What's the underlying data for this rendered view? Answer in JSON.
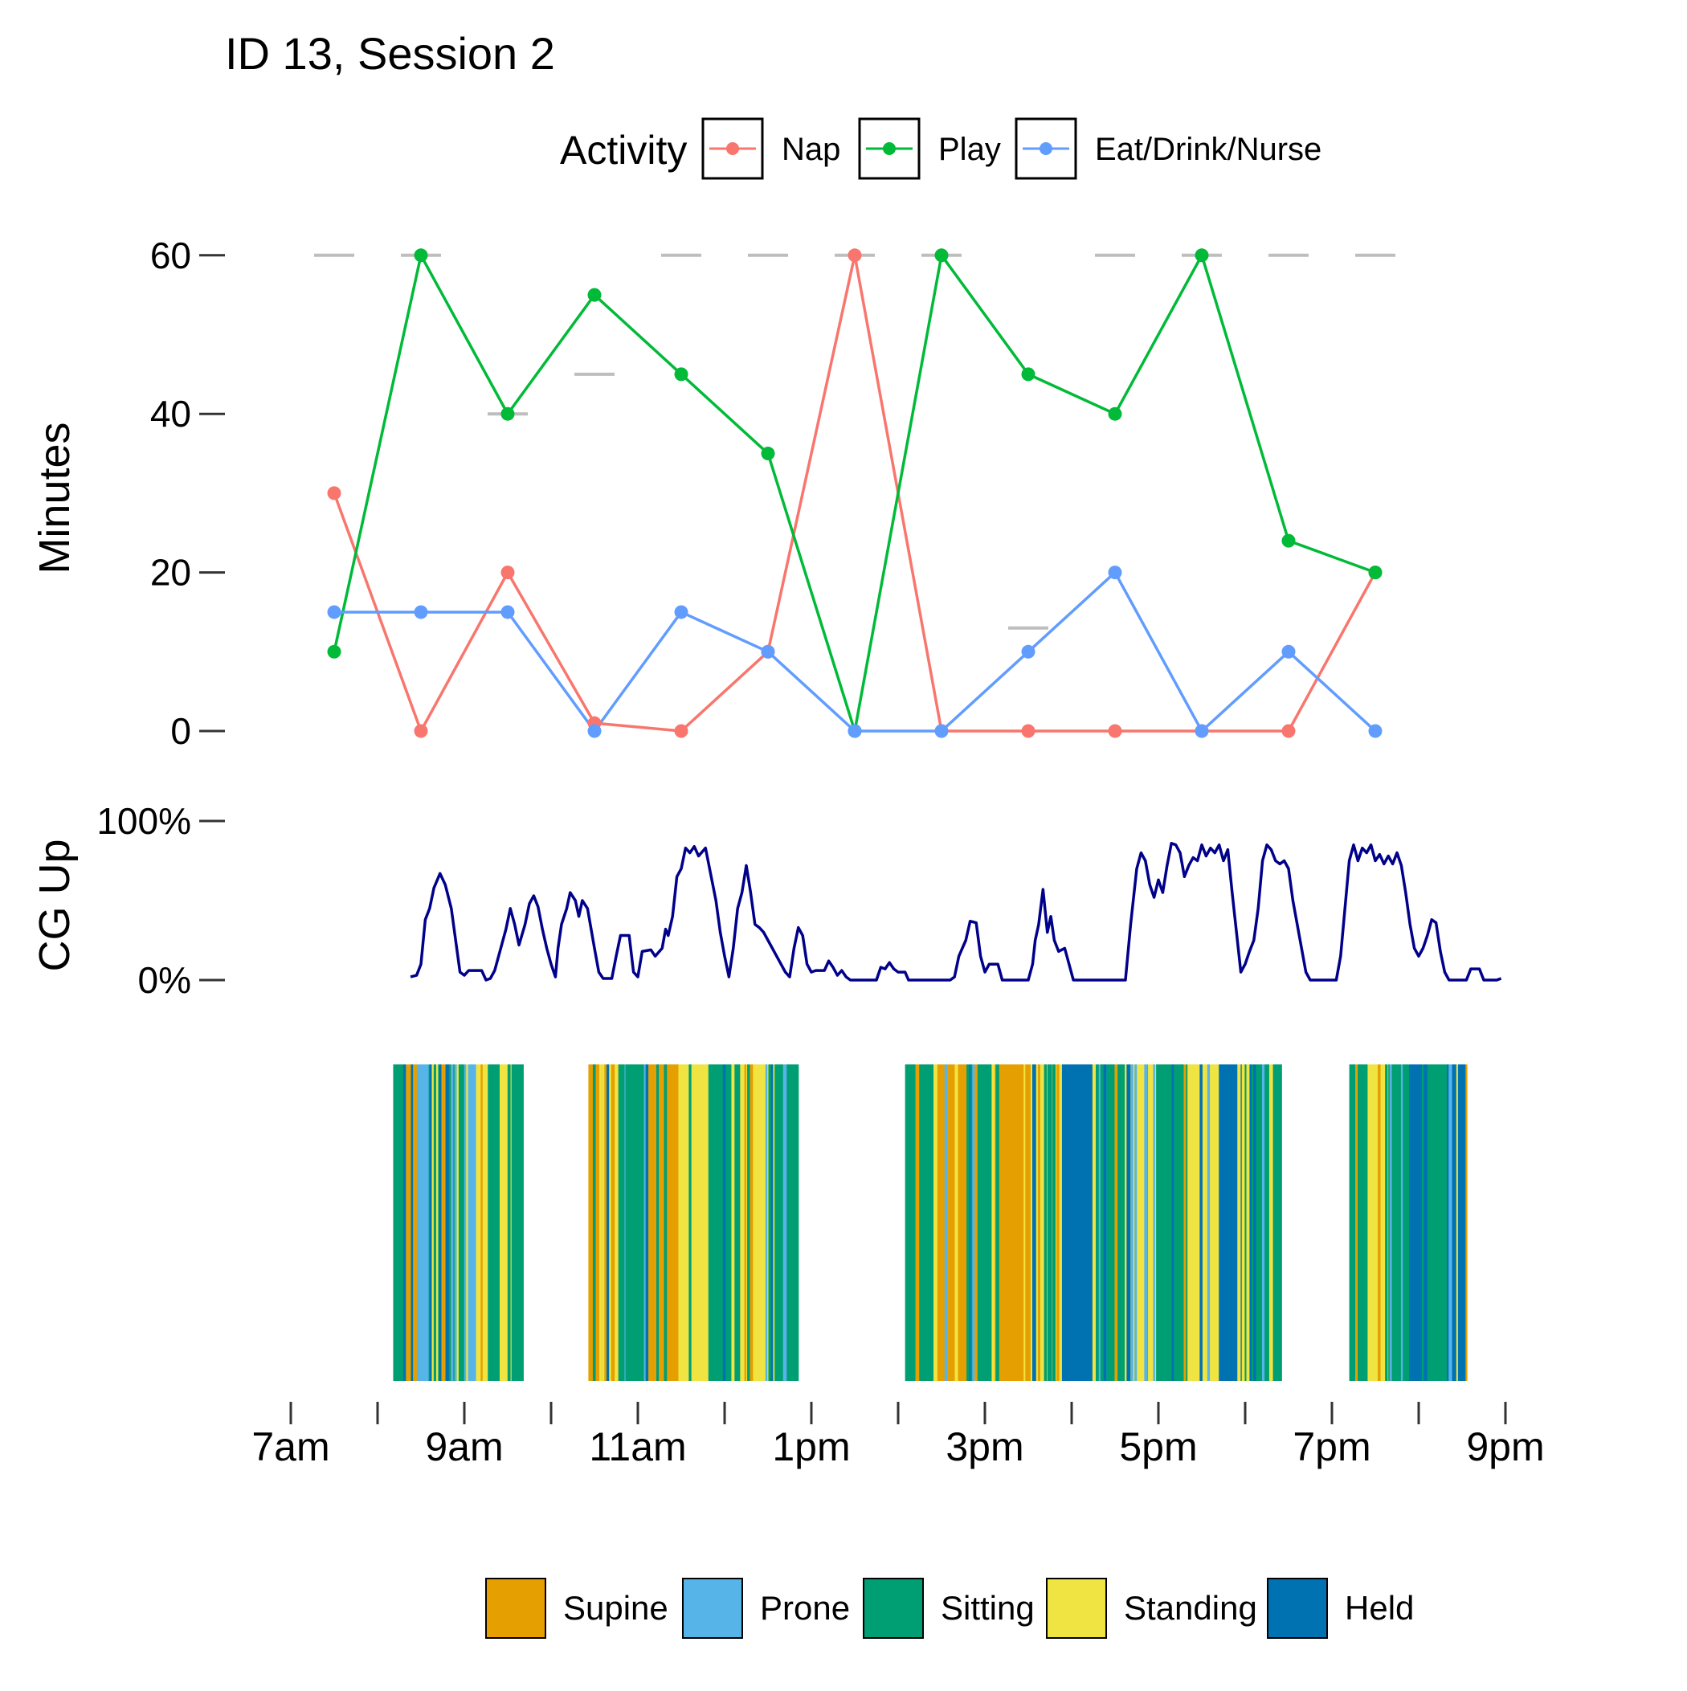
{
  "title": "ID 13, Session 2",
  "colors": {
    "nap": "#F8766D",
    "play": "#00BA38",
    "eat": "#619CFF",
    "cg_line": "#00008B",
    "ref_dash": "#BEBEBE",
    "supine": "#E69F00",
    "prone": "#56B4E9",
    "sitting": "#009E73",
    "standing": "#F0E442",
    "held": "#0072B2"
  },
  "activity_legend": {
    "title": "Activity",
    "items": [
      {
        "key": "nap",
        "label": "Nap"
      },
      {
        "key": "play",
        "label": "Play"
      },
      {
        "key": "eat",
        "label": "Eat/Drink/Nurse"
      }
    ]
  },
  "posture_legend": {
    "items": [
      {
        "key": "supine",
        "label": "Supine"
      },
      {
        "key": "prone",
        "label": "Prone"
      },
      {
        "key": "sitting",
        "label": "Sitting"
      },
      {
        "key": "standing",
        "label": "Standing"
      },
      {
        "key": "held",
        "label": "Held"
      }
    ]
  },
  "x_axis": {
    "tick_hours": [
      7,
      8,
      9,
      10,
      11,
      12,
      13,
      14,
      15,
      16,
      17,
      18,
      19,
      20,
      21
    ],
    "labeled": [
      {
        "hour": 7,
        "label": "7am"
      },
      {
        "hour": 9,
        "label": "9am"
      },
      {
        "hour": 11,
        "label": "11am"
      },
      {
        "hour": 13,
        "label": "1pm"
      },
      {
        "hour": 15,
        "label": "3pm"
      },
      {
        "hour": 17,
        "label": "5pm"
      },
      {
        "hour": 19,
        "label": "7pm"
      },
      {
        "hour": 21,
        "label": "9pm"
      }
    ]
  },
  "chart_data": [
    {
      "type": "line",
      "ylabel": "Minutes",
      "ylim": [
        0,
        60
      ],
      "yticks": [
        {
          "value": 0,
          "label": "0"
        },
        {
          "value": 20,
          "label": "20"
        },
        {
          "value": 40,
          "label": "40"
        },
        {
          "value": 60,
          "label": "60"
        }
      ],
      "x": [
        7.5,
        8.5,
        9.5,
        10.5,
        11.5,
        12.5,
        13.5,
        14.5,
        15.5,
        16.5,
        17.5,
        18.5,
        19.5
      ],
      "series": [
        {
          "name": "Nap",
          "key": "nap",
          "values": [
            30,
            0,
            20,
            1,
            0,
            10,
            60,
            0,
            0,
            0,
            0,
            0,
            20
          ]
        },
        {
          "name": "Play",
          "key": "play",
          "values": [
            10,
            60,
            40,
            55,
            45,
            35,
            0,
            60,
            45,
            40,
            60,
            24,
            20
          ]
        },
        {
          "name": "Eat/Drink/Nurse",
          "key": "eat",
          "values": [
            15,
            15,
            15,
            0,
            15,
            10,
            0,
            0,
            10,
            20,
            0,
            10,
            0
          ]
        }
      ],
      "reference_totals": [
        {
          "x": 7.5,
          "value": 60
        },
        {
          "x": 8.5,
          "value": 60
        },
        {
          "x": 9.5,
          "value": 40
        },
        {
          "x": 10.5,
          "value": 45
        },
        {
          "x": 11.5,
          "value": 60
        },
        {
          "x": 12.5,
          "value": 60
        },
        {
          "x": 13.5,
          "value": 60
        },
        {
          "x": 14.5,
          "value": 60
        },
        {
          "x": 15.5,
          "value": 13
        },
        {
          "x": 16.5,
          "value": 60
        },
        {
          "x": 17.5,
          "value": 60
        },
        {
          "x": 18.5,
          "value": 60
        },
        {
          "x": 19.5,
          "value": 60
        }
      ]
    },
    {
      "type": "line",
      "ylabel": "CG Up",
      "ylim": [
        0,
        100
      ],
      "yticks": [
        {
          "value": 0,
          "label": "0%"
        },
        {
          "value": 100,
          "label": "100%"
        }
      ],
      "series": [
        {
          "key": "cg_line",
          "points": [
            [
              8.38,
              2
            ],
            [
              8.45,
              3
            ],
            [
              8.5,
              10
            ],
            [
              8.55,
              38
            ],
            [
              8.6,
              45
            ],
            [
              8.65,
              58
            ],
            [
              8.72,
              67
            ],
            [
              8.78,
              60
            ],
            [
              8.85,
              45
            ],
            [
              8.9,
              25
            ],
            [
              8.95,
              5
            ],
            [
              9.0,
              3
            ],
            [
              9.05,
              6
            ],
            [
              9.2,
              6
            ],
            [
              9.25,
              0
            ],
            [
              9.3,
              1
            ],
            [
              9.35,
              6
            ],
            [
              9.42,
              20
            ],
            [
              9.48,
              32
            ],
            [
              9.53,
              45
            ],
            [
              9.58,
              35
            ],
            [
              9.63,
              22
            ],
            [
              9.7,
              35
            ],
            [
              9.75,
              48
            ],
            [
              9.8,
              53
            ],
            [
              9.85,
              46
            ],
            [
              9.9,
              32
            ],
            [
              9.95,
              20
            ],
            [
              10.0,
              10
            ],
            [
              10.05,
              2
            ],
            [
              10.08,
              20
            ],
            [
              10.12,
              35
            ],
            [
              10.18,
              45
            ],
            [
              10.22,
              55
            ],
            [
              10.28,
              50
            ],
            [
              10.32,
              40
            ],
            [
              10.36,
              50
            ],
            [
              10.42,
              45
            ],
            [
              10.5,
              20
            ],
            [
              10.55,
              5
            ],
            [
              10.6,
              1
            ],
            [
              10.7,
              1
            ],
            [
              10.75,
              15
            ],
            [
              10.8,
              28
            ],
            [
              10.9,
              28
            ],
            [
              10.95,
              5
            ],
            [
              11.0,
              2
            ],
            [
              11.05,
              18
            ],
            [
              11.15,
              19
            ],
            [
              11.2,
              15
            ],
            [
              11.28,
              20
            ],
            [
              11.32,
              32
            ],
            [
              11.35,
              28
            ],
            [
              11.4,
              40
            ],
            [
              11.45,
              65
            ],
            [
              11.5,
              70
            ],
            [
              11.55,
              83
            ],
            [
              11.6,
              80
            ],
            [
              11.65,
              84
            ],
            [
              11.7,
              78
            ],
            [
              11.78,
              83
            ],
            [
              11.82,
              72
            ],
            [
              11.9,
              50
            ],
            [
              11.95,
              30
            ],
            [
              12.0,
              15
            ],
            [
              12.05,
              2
            ],
            [
              12.1,
              20
            ],
            [
              12.15,
              45
            ],
            [
              12.2,
              55
            ],
            [
              12.25,
              72
            ],
            [
              12.3,
              55
            ],
            [
              12.35,
              35
            ],
            [
              12.4,
              33
            ],
            [
              12.45,
              30
            ],
            [
              12.55,
              20
            ],
            [
              12.6,
              15
            ],
            [
              12.65,
              10
            ],
            [
              12.7,
              5
            ],
            [
              12.75,
              2
            ],
            [
              12.8,
              20
            ],
            [
              12.85,
              33
            ],
            [
              12.9,
              28
            ],
            [
              12.95,
              10
            ],
            [
              13.0,
              5
            ],
            [
              13.05,
              6
            ],
            [
              13.15,
              6
            ],
            [
              13.2,
              12
            ],
            [
              13.25,
              8
            ],
            [
              13.3,
              3
            ],
            [
              13.35,
              6
            ],
            [
              13.4,
              2
            ],
            [
              13.45,
              0
            ],
            [
              13.55,
              0
            ],
            [
              13.65,
              0
            ],
            [
              13.75,
              0
            ],
            [
              13.8,
              8
            ],
            [
              13.85,
              7
            ],
            [
              13.9,
              11
            ],
            [
              13.95,
              7
            ],
            [
              14.0,
              5
            ],
            [
              14.08,
              5
            ],
            [
              14.12,
              0
            ],
            [
              14.3,
              0
            ],
            [
              14.5,
              0
            ],
            [
              14.6,
              0
            ],
            [
              14.65,
              2
            ],
            [
              14.7,
              15
            ],
            [
              14.78,
              25
            ],
            [
              14.83,
              37
            ],
            [
              14.9,
              36
            ],
            [
              14.95,
              15
            ],
            [
              15.0,
              5
            ],
            [
              15.05,
              10
            ],
            [
              15.15,
              10
            ],
            [
              15.2,
              0
            ],
            [
              15.4,
              0
            ],
            [
              15.5,
              0
            ],
            [
              15.55,
              10
            ],
            [
              15.58,
              25
            ],
            [
              15.62,
              35
            ],
            [
              15.67,
              57
            ],
            [
              15.72,
              30
            ],
            [
              15.76,
              40
            ],
            [
              15.8,
              25
            ],
            [
              15.85,
              18
            ],
            [
              15.92,
              20
            ],
            [
              15.97,
              10
            ],
            [
              16.02,
              0
            ],
            [
              16.2,
              0
            ],
            [
              16.4,
              0
            ],
            [
              16.55,
              0
            ],
            [
              16.62,
              0
            ],
            [
              16.68,
              35
            ],
            [
              16.75,
              70
            ],
            [
              16.8,
              80
            ],
            [
              16.85,
              75
            ],
            [
              16.9,
              60
            ],
            [
              16.95,
              52
            ],
            [
              17.0,
              63
            ],
            [
              17.05,
              55
            ],
            [
              17.1,
              72
            ],
            [
              17.15,
              86
            ],
            [
              17.2,
              85
            ],
            [
              17.25,
              80
            ],
            [
              17.3,
              65
            ],
            [
              17.35,
              72
            ],
            [
              17.4,
              77
            ],
            [
              17.45,
              75
            ],
            [
              17.5,
              85
            ],
            [
              17.55,
              78
            ],
            [
              17.6,
              83
            ],
            [
              17.65,
              80
            ],
            [
              17.7,
              85
            ],
            [
              17.75,
              75
            ],
            [
              17.8,
              82
            ],
            [
              17.85,
              55
            ],
            [
              17.9,
              30
            ],
            [
              17.95,
              5
            ],
            [
              18.0,
              10
            ],
            [
              18.05,
              18
            ],
            [
              18.1,
              25
            ],
            [
              18.15,
              45
            ],
            [
              18.2,
              75
            ],
            [
              18.25,
              85
            ],
            [
              18.3,
              82
            ],
            [
              18.35,
              75
            ],
            [
              18.4,
              73
            ],
            [
              18.45,
              75
            ],
            [
              18.5,
              70
            ],
            [
              18.55,
              50
            ],
            [
              18.6,
              35
            ],
            [
              18.65,
              20
            ],
            [
              18.7,
              5
            ],
            [
              18.75,
              0
            ],
            [
              18.9,
              0
            ],
            [
              19.0,
              0
            ],
            [
              19.05,
              0
            ],
            [
              19.1,
              15
            ],
            [
              19.15,
              45
            ],
            [
              19.2,
              75
            ],
            [
              19.25,
              85
            ],
            [
              19.3,
              75
            ],
            [
              19.35,
              83
            ],
            [
              19.4,
              80
            ],
            [
              19.45,
              85
            ],
            [
              19.5,
              75
            ],
            [
              19.55,
              79
            ],
            [
              19.6,
              73
            ],
            [
              19.65,
              78
            ],
            [
              19.7,
              73
            ],
            [
              19.75,
              80
            ],
            [
              19.8,
              72
            ],
            [
              19.85,
              55
            ],
            [
              19.9,
              35
            ],
            [
              19.95,
              20
            ],
            [
              20.0,
              15
            ],
            [
              20.05,
              20
            ],
            [
              20.1,
              28
            ],
            [
              20.15,
              38
            ],
            [
              20.2,
              36
            ],
            [
              20.25,
              18
            ],
            [
              20.3,
              5
            ],
            [
              20.35,
              0
            ],
            [
              20.4,
              0
            ],
            [
              20.45,
              0
            ],
            [
              20.55,
              0
            ],
            [
              20.6,
              7
            ],
            [
              20.7,
              7
            ],
            [
              20.75,
              0
            ],
            [
              20.8,
              0
            ],
            [
              20.9,
              0
            ],
            [
              20.95,
              1
            ]
          ]
        }
      ]
    },
    {
      "type": "heatmap",
      "bands": [
        {
          "start": 8.18,
          "end": 9.68,
          "order": [
            "sitting",
            "supine",
            "prone",
            "sitting",
            "supine",
            "sitting",
            "prone",
            "standing",
            "sitting",
            "standing",
            "sitting"
          ]
        },
        {
          "start": 10.43,
          "end": 12.85,
          "order": [
            "supine",
            "sitting",
            "supine",
            "standing",
            "sitting",
            "standing",
            "sitting"
          ]
        },
        {
          "start": 14.08,
          "end": 18.42,
          "order": [
            "sitting",
            "supine",
            "sitting",
            "supine",
            "standing",
            "held",
            "sitting",
            "standing",
            "sitting",
            "standing",
            "held",
            "sitting"
          ]
        },
        {
          "start": 19.2,
          "end": 20.55,
          "order": [
            "sitting",
            "standing",
            "sitting",
            "held",
            "sitting",
            "held"
          ]
        }
      ]
    }
  ]
}
